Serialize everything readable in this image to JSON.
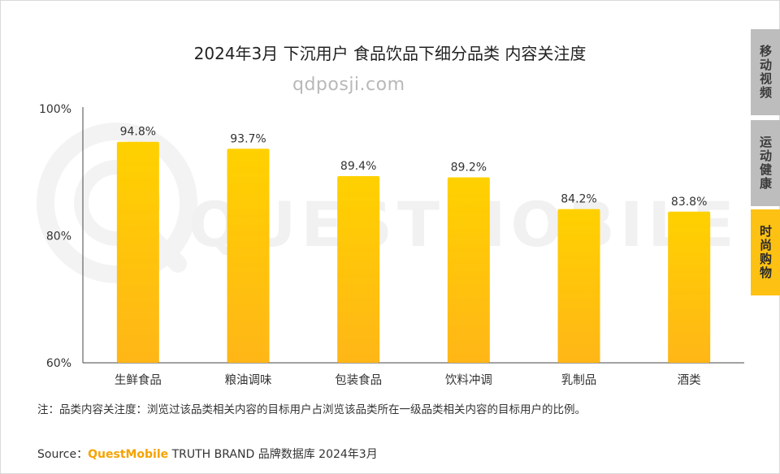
{
  "title": "2024年3月 下沉用户 食品饮品下细分品类 内容关注度",
  "site_watermark": "qdposji.com",
  "brand_watermark": "QUESTMOBILE",
  "side_tabs": [
    {
      "label": "移动视频",
      "active": false
    },
    {
      "label": "运动健康",
      "active": false
    },
    {
      "label": "时尚购物",
      "active": true
    }
  ],
  "note": "注：品类内容关注度：浏览过该品类相关内容的目标用户占浏览该品类所在一级品类相关内容的目标用户的比例。",
  "source": {
    "prefix": "Source：",
    "brand": "QuestMobile",
    "rest": " TRUTH BRAND 品牌数据库 2024年3月"
  },
  "colors": {
    "bar_top": "#FFD100",
    "bar_bottom": "#FFB617",
    "active_tab": "#FDC113",
    "inactive_tab": "#BDBDBD"
  },
  "chart_data": {
    "type": "bar",
    "categories": [
      "生鲜食品",
      "粮油调味",
      "包装食品",
      "饮料冲调",
      "乳制品",
      "酒类"
    ],
    "values": [
      94.8,
      93.7,
      89.4,
      89.2,
      84.2,
      83.8
    ],
    "data_labels": [
      "94.8%",
      "93.7%",
      "89.4%",
      "89.2%",
      "84.2%",
      "83.8%"
    ],
    "ylim": [
      60,
      100
    ],
    "yticks": [
      60,
      80,
      100
    ],
    "ytick_labels": [
      "60%",
      "80%",
      "100%"
    ],
    "title": "2024年3月 下沉用户 食品饮品下细分品类 内容关注度",
    "xlabel": "",
    "ylabel": "",
    "grid": false
  }
}
